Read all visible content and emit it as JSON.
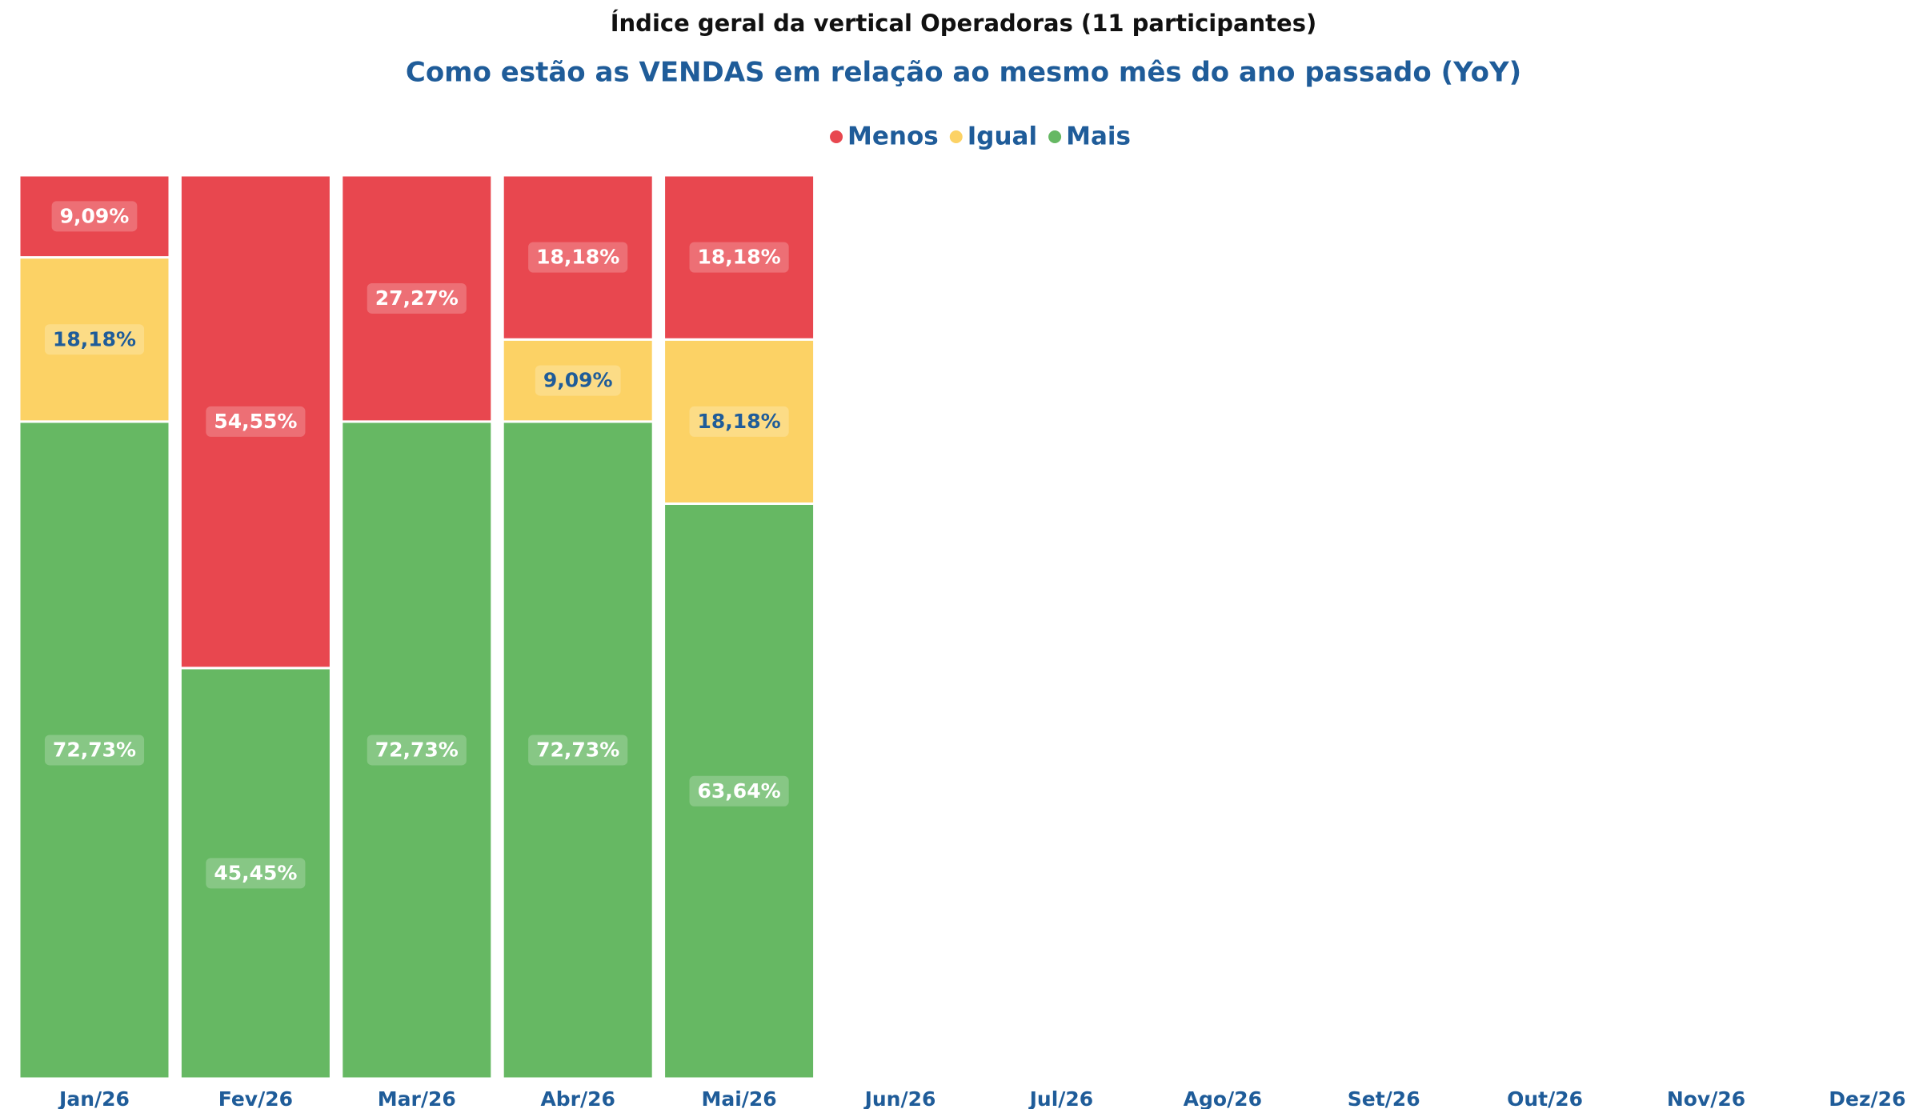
{
  "chart_data": {
    "type": "stacked-bar",
    "title": "Índice geral da vertical Operadoras  (11 participantes)",
    "subtitle": "Como estão as VENDAS em relação ao mesmo mês do ano passado (YoY)",
    "categories": [
      "Jan/26",
      "Fev/26",
      "Mar/26",
      "Abr/26",
      "Mai/26",
      "Jun/26",
      "Jul/26",
      "Ago/26",
      "Set/26",
      "Out/26",
      "Nov/26",
      "Dez/26"
    ],
    "ylim": [
      0,
      100
    ],
    "legend": "top",
    "series": [
      {
        "name": "Menos",
        "color": "#e8474f",
        "values": [
          9.09,
          54.55,
          27.27,
          18.18,
          18.18,
          null,
          null,
          null,
          null,
          null,
          null,
          null
        ],
        "value_labels": [
          "9,09%",
          "54,55%",
          "27,27%",
          "18,18%",
          "18,18%",
          null,
          null,
          null,
          null,
          null,
          null,
          null
        ]
      },
      {
        "name": "Igual",
        "color": "#fcd265",
        "values": [
          18.18,
          null,
          null,
          9.09,
          18.18,
          null,
          null,
          null,
          null,
          null,
          null,
          null
        ],
        "value_labels": [
          "18,18%",
          null,
          null,
          "9,09%",
          "18,18%",
          null,
          null,
          null,
          null,
          null,
          null,
          null
        ]
      },
      {
        "name": "Mais",
        "color": "#66b863",
        "values": [
          72.73,
          45.45,
          72.73,
          72.73,
          63.64,
          null,
          null,
          null,
          null,
          null,
          null,
          null
        ],
        "value_labels": [
          "72,73%",
          "45,45%",
          "72,73%",
          "72,73%",
          "63,64%",
          null,
          null,
          null,
          null,
          null,
          null,
          null
        ]
      }
    ]
  }
}
